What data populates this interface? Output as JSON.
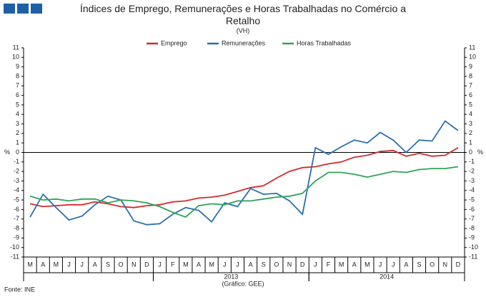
{
  "chart_data": {
    "type": "line",
    "title": "Índices de Emprego, Remunerações e Horas Trabalhadas no Comércio a Retalho",
    "subtitle": "(VH)",
    "y_unit": "%",
    "source": "Fonte: INE",
    "credit": "(Gráfico: GEE)",
    "categories": [
      "M",
      "A",
      "M",
      "J",
      "J",
      "A",
      "S",
      "O",
      "N",
      "D",
      "J",
      "F",
      "M",
      "A",
      "M",
      "J",
      "J",
      "A",
      "S",
      "O",
      "N",
      "D",
      "J",
      "F",
      "M",
      "A",
      "M",
      "J",
      "J",
      "A",
      "S",
      "O",
      "N",
      "D"
    ],
    "year_groups": [
      {
        "label": null,
        "count": 10
      },
      {
        "label": "2013",
        "count": 12
      },
      {
        "label": "2014",
        "count": 12
      }
    ],
    "ylim": [
      -11,
      11
    ],
    "yticks": [
      -11,
      -10,
      -9,
      -8,
      -7,
      -6,
      -5,
      -4,
      -3,
      -2,
      -1,
      0,
      1,
      2,
      3,
      4,
      5,
      6,
      7,
      8,
      9,
      10,
      11
    ],
    "legend": "top",
    "series": [
      {
        "name": "Emprego",
        "color": "#d42a2a",
        "values": [
          -5.4,
          -5.7,
          -5.6,
          -5.5,
          -5.5,
          -5.2,
          -5.4,
          -5.7,
          -5.8,
          -5.6,
          -5.5,
          -5.2,
          -5.1,
          -4.8,
          -4.7,
          -4.5,
          -4.1,
          -3.7,
          -3.5,
          -2.7,
          -2.0,
          -1.6,
          -1.5,
          -1.2,
          -1.0,
          -0.5,
          -0.3,
          0.1,
          0.2,
          -0.4,
          -0.1,
          -0.4,
          -0.3,
          0.5
        ]
      },
      {
        "name": "Remunerações",
        "color": "#2a6fb0",
        "values": [
          -6.8,
          -4.4,
          -5.8,
          -7.1,
          -6.7,
          -5.5,
          -4.6,
          -5.0,
          -7.2,
          -7.6,
          -7.5,
          -6.5,
          -5.8,
          -6.1,
          -7.3,
          -5.3,
          -5.7,
          -3.8,
          -4.4,
          -4.3,
          -5.1,
          -6.5,
          0.5,
          -0.2,
          0.6,
          1.3,
          1.0,
          2.1,
          1.3,
          0.0,
          1.3,
          1.2,
          3.3,
          2.3
        ]
      },
      {
        "name": "Horas Trabalhadas",
        "color": "#2ea35a",
        "values": [
          -4.6,
          -5.0,
          -4.9,
          -5.1,
          -4.9,
          -4.9,
          -5.3,
          -5.0,
          -5.1,
          -5.3,
          -5.7,
          -6.3,
          -6.8,
          -5.6,
          -5.4,
          -5.5,
          -5.1,
          -5.1,
          -4.9,
          -4.7,
          -4.6,
          -4.3,
          -3.0,
          -2.1,
          -2.1,
          -2.3,
          -2.6,
          -2.3,
          -2.0,
          -2.1,
          -1.8,
          -1.7,
          -1.7,
          -1.5
        ]
      }
    ]
  }
}
